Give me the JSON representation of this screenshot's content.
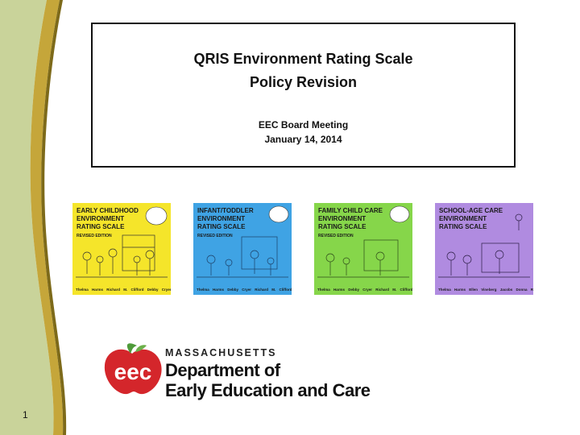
{
  "slide": {
    "title_line1": "QRIS Environment Rating Scale",
    "title_line2": "Policy Revision",
    "meeting": "EEC Board Meeting",
    "date": "January 14, 2014",
    "page_number": "1"
  },
  "books": [
    {
      "title": "EARLY CHILDHOOD ENVIRONMENT RATING SCALE",
      "edition": "REVISED EDITION",
      "authors": "Thelma Harms   Richard M. Clifford   Debby Cryer",
      "color": "#f5e52a"
    },
    {
      "title": "INFANT/TODDLER ENVIRONMENT RATING SCALE",
      "edition": "REVISED EDITION",
      "authors": "Thelma Harms   Debby Cryer   Richard M. Clifford",
      "color": "#3fa3e4"
    },
    {
      "title": "FAMILY CHILD CARE ENVIRONMENT RATING SCALE",
      "edition": "REVISED EDITION",
      "authors": "Thelma Harms   Debby Cryer   Richard M. Clifford",
      "color": "#86d64a"
    },
    {
      "title": "SCHOOL-AGE CARE ENVIRONMENT RATING SCALE",
      "edition": "",
      "authors": "Thelma Harms   Ellen Vineberg Jacobs   Donna Romano White",
      "color": "#b08be0"
    }
  ],
  "organization": {
    "logo_text": "eec",
    "state": "MASSACHUSETTS",
    "line1": "Department of",
    "line2": "Early Education and Care"
  },
  "colors": {
    "sidebar_green": "#c9d39a",
    "sidebar_gold": "#c5a63a",
    "sidebar_dark": "#7d6a1a",
    "logo_red": "#d4262b",
    "logo_leaf": "#4f9b3a"
  }
}
